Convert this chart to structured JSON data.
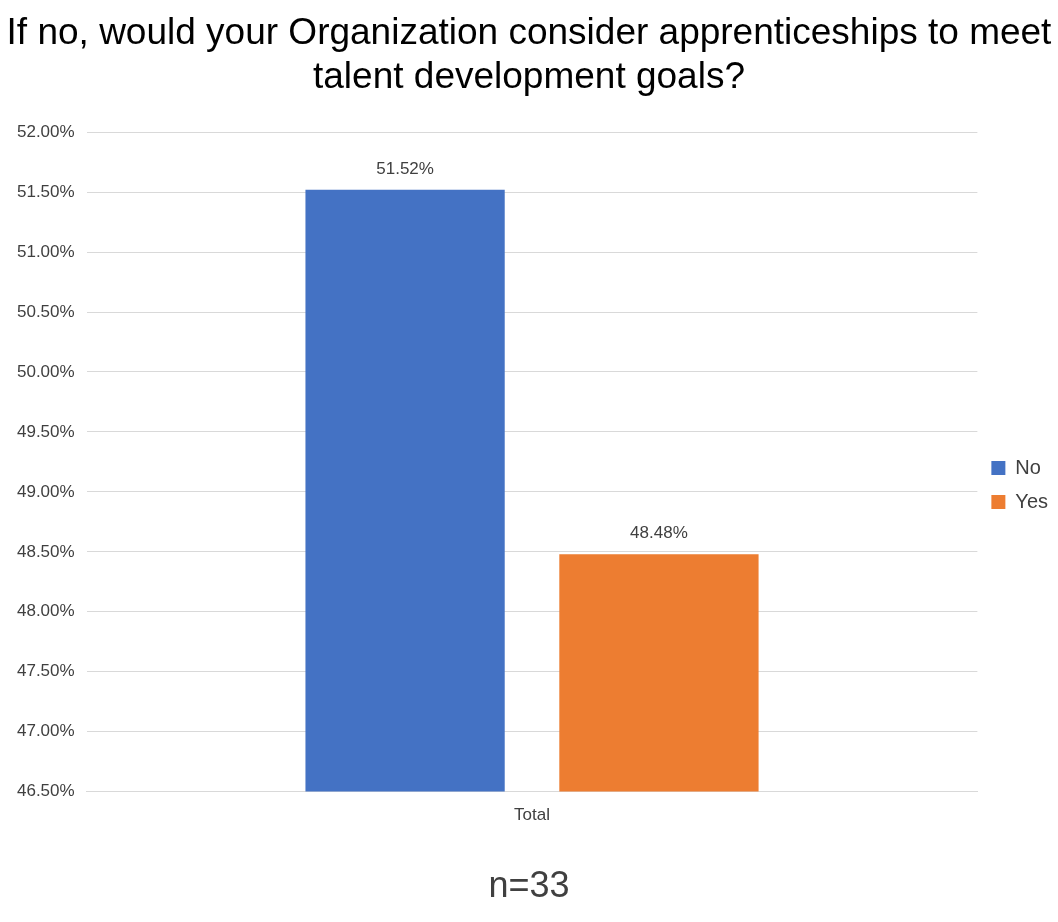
{
  "chart_data": {
    "type": "bar",
    "title": "If no, would your Organization consider apprenticeships to meet talent development goals?",
    "categories": [
      "Total"
    ],
    "series": [
      {
        "name": "No",
        "color": "#4472c4",
        "values": [
          51.52
        ],
        "value_labels": [
          "51.52%"
        ]
      },
      {
        "name": "Yes",
        "color": "#ed7d31",
        "values": [
          48.48
        ],
        "value_labels": [
          "48.48%"
        ]
      }
    ],
    "ylim": [
      46.5,
      52
    ],
    "yticks": [
      {
        "value": 46.5,
        "label": "46.50%"
      },
      {
        "value": 47,
        "label": "47.00%"
      },
      {
        "value": 47.5,
        "label": "47.50%"
      },
      {
        "value": 48,
        "label": "48.00%"
      },
      {
        "value": 48.5,
        "label": "48.50%"
      },
      {
        "value": 49,
        "label": "49.00%"
      },
      {
        "value": 49.5,
        "label": "49.50%"
      },
      {
        "value": 50,
        "label": "50.00%"
      },
      {
        "value": 50.5,
        "label": "50.50%"
      },
      {
        "value": 51,
        "label": "51.00%"
      },
      {
        "value": 51.5,
        "label": "51.50%"
      },
      {
        "value": 52,
        "label": "52.00%"
      }
    ],
    "grid": "y",
    "legend": "right",
    "annotations": [
      "n=33"
    ]
  }
}
